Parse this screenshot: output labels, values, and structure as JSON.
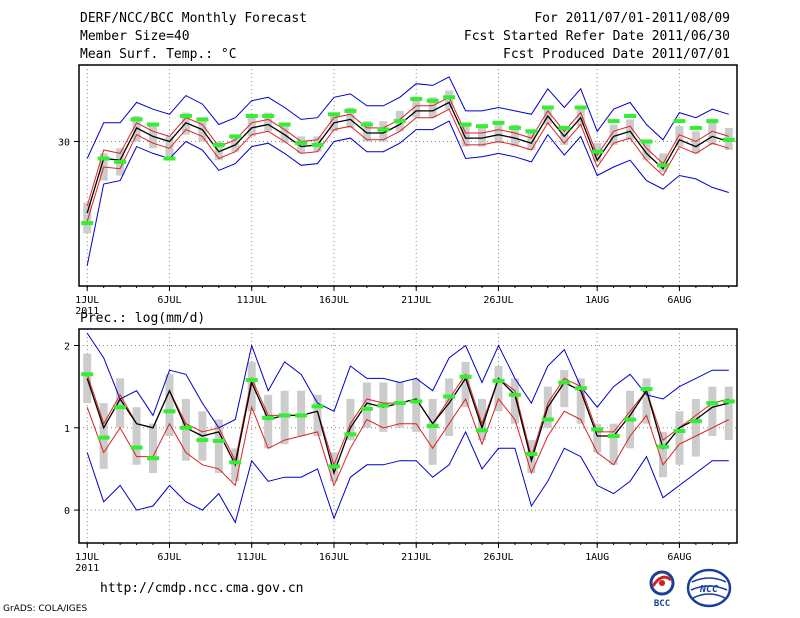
{
  "header": {
    "title": "DERF/NCC/BCC Monthly Forecast",
    "member_size": "Member Size=40",
    "variable": "Mean Surf. Temp.: °C",
    "period": "For 2011/07/01-2011/08/09",
    "fcst_started": "Fcst Started Refer Date 2011/06/30",
    "fcst_produced": "Fcst Produced Date 2011/07/01"
  },
  "colors": {
    "envelope": "#0000cc",
    "spread": "#dd2222",
    "mean": "#000000",
    "bar": "#cccccc",
    "marker": "#33ee33",
    "grid": "#888888"
  },
  "footer": {
    "url": "http://cmdp.ncc.cma.gov.cn",
    "grads": "GrADS: COLA/IGES",
    "logo_bcc": "BCC",
    "logo_ncc": "NCC"
  },
  "chart_data": [
    {
      "type": "line",
      "title": "Mean Surf. Temp.: °C",
      "x_tick_labels": [
        "1JUL",
        "6JUL",
        "11JUL",
        "16JUL",
        "21JUL",
        "26JUL",
        "1AUG",
        "6AUG"
      ],
      "x_tick_days": [
        1,
        6,
        11,
        16,
        21,
        26,
        32,
        37
      ],
      "x_year_label": "2011",
      "days": [
        1,
        2,
        3,
        4,
        5,
        6,
        7,
        8,
        9,
        10,
        11,
        12,
        13,
        14,
        15,
        16,
        17,
        18,
        19,
        20,
        21,
        22,
        23,
        24,
        25,
        26,
        27,
        28,
        29,
        30,
        31,
        32,
        33,
        34,
        35,
        36,
        37,
        38,
        39,
        40
      ],
      "y_ticks": [
        30
      ],
      "ylim": [
        21.5,
        34.5
      ],
      "grid": true,
      "series": [
        {
          "name": "max",
          "values": [
            29.0,
            31.1,
            31.1,
            32.3,
            31.9,
            31.6,
            32.7,
            32.2,
            31.0,
            31.4,
            32.4,
            32.6,
            32.0,
            31.3,
            31.4,
            32.6,
            32.8,
            32.1,
            32.1,
            32.6,
            33.4,
            33.3,
            33.8,
            31.8,
            31.8,
            32.0,
            31.8,
            31.6,
            33.1,
            32.0,
            33.1,
            30.6,
            31.9,
            32.3,
            31.0,
            30.1,
            31.7,
            31.4,
            31.9,
            31.6
          ]
        },
        {
          "name": "upper",
          "values": [
            26.2,
            29.5,
            29.3,
            31.1,
            30.6,
            30.3,
            31.4,
            31.0,
            29.7,
            30.1,
            31.1,
            31.3,
            30.7,
            30.0,
            30.1,
            31.4,
            31.6,
            30.8,
            30.8,
            31.3,
            32.1,
            32.1,
            32.6,
            30.5,
            30.5,
            30.7,
            30.5,
            30.2,
            31.8,
            30.6,
            31.7,
            29.2,
            30.6,
            30.9,
            29.6,
            28.7,
            30.4,
            30.0,
            30.6,
            30.3
          ]
        },
        {
          "name": "mean",
          "values": [
            25.8,
            29.0,
            28.9,
            30.8,
            30.3,
            30.0,
            31.1,
            30.7,
            29.4,
            29.8,
            30.8,
            31.0,
            30.4,
            29.7,
            29.8,
            31.1,
            31.3,
            30.5,
            30.5,
            31.0,
            31.8,
            31.8,
            32.3,
            30.2,
            30.2,
            30.4,
            30.2,
            29.9,
            31.5,
            30.3,
            31.4,
            28.9,
            30.3,
            30.6,
            29.3,
            28.4,
            30.1,
            29.7,
            30.3,
            30.0
          ]
        },
        {
          "name": "lower",
          "values": [
            25.3,
            28.5,
            28.4,
            30.4,
            29.9,
            29.6,
            30.7,
            30.3,
            29.0,
            29.4,
            30.4,
            30.6,
            30.0,
            29.3,
            29.4,
            30.7,
            30.9,
            30.1,
            30.1,
            30.6,
            31.4,
            31.4,
            31.9,
            29.8,
            29.8,
            30.0,
            29.8,
            29.5,
            31.1,
            29.9,
            31.0,
            28.5,
            29.9,
            30.2,
            28.9,
            28.0,
            29.7,
            29.3,
            29.9,
            29.6
          ]
        },
        {
          "name": "min",
          "values": [
            22.7,
            27.5,
            27.7,
            29.7,
            29.3,
            29.0,
            30.0,
            29.5,
            28.3,
            28.7,
            29.7,
            29.9,
            29.3,
            28.6,
            28.7,
            30.0,
            30.2,
            29.4,
            29.4,
            29.9,
            30.7,
            30.7,
            31.2,
            29.0,
            29.1,
            29.3,
            29.1,
            28.8,
            30.4,
            29.2,
            30.3,
            28.0,
            28.5,
            28.9,
            27.7,
            27.2,
            28.0,
            27.8,
            27.3,
            27.0
          ]
        },
        {
          "name": "box_low",
          "values": [
            24.6,
            27.7,
            28.0,
            30.0,
            29.6,
            29.0,
            30.4,
            30.0,
            28.9,
            29.4,
            30.3,
            30.6,
            29.9,
            29.3,
            29.4,
            30.6,
            30.8,
            30.0,
            30.0,
            30.6,
            31.4,
            31.4,
            31.9,
            29.7,
            29.7,
            29.9,
            29.7,
            29.5,
            31.0,
            29.8,
            30.9,
            28.8,
            29.8,
            30.1,
            28.9,
            28.2,
            29.7,
            29.3,
            29.8,
            29.5
          ]
        },
        {
          "name": "box_high",
          "values": [
            26.4,
            29.3,
            29.6,
            31.5,
            31.0,
            30.3,
            31.7,
            31.3,
            30.0,
            30.4,
            31.5,
            31.7,
            31.0,
            30.3,
            30.3,
            31.7,
            32.0,
            31.2,
            31.2,
            31.8,
            32.6,
            32.6,
            33.0,
            31.0,
            30.9,
            31.0,
            31.0,
            30.6,
            32.0,
            30.9,
            32.1,
            29.9,
            31.0,
            31.3,
            30.0,
            29.3,
            30.9,
            30.6,
            31.2,
            30.8
          ]
        },
        {
          "name": "observed",
          "values": [
            25.2,
            29.0,
            28.8,
            31.3,
            31.0,
            29.0,
            31.5,
            31.3,
            29.8,
            30.3,
            31.5,
            31.5,
            31.0,
            29.9,
            29.8,
            31.6,
            31.8,
            31.0,
            30.7,
            31.2,
            32.5,
            32.4,
            32.6,
            31.0,
            30.9,
            31.1,
            30.8,
            30.6,
            32.0,
            30.8,
            32.0,
            29.4,
            31.2,
            31.5,
            30.0,
            28.6,
            31.2,
            30.8,
            31.2,
            30.1
          ]
        }
      ]
    },
    {
      "type": "line",
      "title": "Prec.: log(mm/d)",
      "x_tick_labels": [
        "1JUL",
        "6JUL",
        "11JUL",
        "16JUL",
        "21JUL",
        "26JUL",
        "1AUG",
        "6AUG"
      ],
      "x_tick_days": [
        1,
        6,
        11,
        16,
        21,
        26,
        32,
        37
      ],
      "x_year_label": "2011",
      "days": [
        1,
        2,
        3,
        4,
        5,
        6,
        7,
        8,
        9,
        10,
        11,
        12,
        13,
        14,
        15,
        16,
        17,
        18,
        19,
        20,
        21,
        22,
        23,
        24,
        25,
        26,
        27,
        28,
        29,
        30,
        31,
        32,
        33,
        34,
        35,
        36,
        37,
        38,
        39,
        40
      ],
      "y_ticks": [
        0,
        1,
        2
      ],
      "ylim": [
        -0.4,
        2.2
      ],
      "grid": true,
      "series": [
        {
          "name": "max",
          "values": [
            2.15,
            1.85,
            1.35,
            1.45,
            1.15,
            1.7,
            1.65,
            1.3,
            1.0,
            1.1,
            2.0,
            1.45,
            1.8,
            1.65,
            1.3,
            1.2,
            1.75,
            1.6,
            1.6,
            1.55,
            1.6,
            1.45,
            1.85,
            2.0,
            1.55,
            2.0,
            1.6,
            1.3,
            1.75,
            1.95,
            1.5,
            1.25,
            1.5,
            1.65,
            1.4,
            1.35,
            1.5,
            1.6,
            1.7,
            1.7
          ]
        },
        {
          "name": "upper",
          "values": [
            1.65,
            1.05,
            1.4,
            1.05,
            1.0,
            1.45,
            1.05,
            0.95,
            1.0,
            0.6,
            1.6,
            1.15,
            1.15,
            1.15,
            1.2,
            0.55,
            1.05,
            1.35,
            1.3,
            1.3,
            1.35,
            1.05,
            1.35,
            1.65,
            1.05,
            1.6,
            1.45,
            0.65,
            1.3,
            1.6,
            1.5,
            0.95,
            0.95,
            1.2,
            1.45,
            0.85,
            1.0,
            1.15,
            1.3,
            1.35
          ]
        },
        {
          "name": "mean",
          "values": [
            1.6,
            1.0,
            1.35,
            1.05,
            1.0,
            1.45,
            1.0,
            0.9,
            0.95,
            0.55,
            1.55,
            1.1,
            1.15,
            1.15,
            1.2,
            0.45,
            1.0,
            1.3,
            1.25,
            1.3,
            1.35,
            1.05,
            1.3,
            1.6,
            1.0,
            1.6,
            1.4,
            0.6,
            1.25,
            1.55,
            1.45,
            0.9,
            0.9,
            1.15,
            1.45,
            0.75,
            1.0,
            1.1,
            1.25,
            1.3
          ]
        },
        {
          "name": "lower",
          "values": [
            1.25,
            0.7,
            1.0,
            0.65,
            0.65,
            1.05,
            0.7,
            0.55,
            0.5,
            0.3,
            1.25,
            0.75,
            0.85,
            0.9,
            0.95,
            0.3,
            0.75,
            1.1,
            1.0,
            1.05,
            1.05,
            0.75,
            1.05,
            1.35,
            0.8,
            1.35,
            1.1,
            0.45,
            0.9,
            1.2,
            1.1,
            0.7,
            0.55,
            0.9,
            1.15,
            0.55,
            0.8,
            0.9,
            1.0,
            1.1
          ]
        },
        {
          "name": "min",
          "values": [
            0.7,
            0.1,
            0.3,
            0.0,
            0.05,
            0.3,
            0.1,
            0.0,
            0.2,
            -0.15,
            0.6,
            0.35,
            0.4,
            0.4,
            0.5,
            -0.1,
            0.4,
            0.55,
            0.55,
            0.6,
            0.6,
            0.4,
            0.55,
            0.95,
            0.5,
            0.75,
            0.75,
            0.05,
            0.35,
            0.75,
            0.65,
            0.3,
            0.2,
            0.35,
            0.65,
            0.15,
            0.3,
            0.45,
            0.6,
            0.6
          ]
        },
        {
          "name": "box_low",
          "values": [
            1.3,
            0.5,
            1.0,
            0.55,
            0.45,
            0.9,
            0.6,
            0.6,
            0.45,
            0.35,
            1.2,
            0.75,
            0.8,
            0.9,
            0.9,
            0.35,
            0.85,
            1.0,
            0.95,
            1.0,
            0.95,
            0.55,
            0.9,
            1.25,
            0.85,
            1.2,
            1.05,
            0.45,
            1.0,
            1.25,
            1.05,
            0.7,
            0.55,
            0.75,
            1.05,
            0.4,
            0.55,
            0.65,
            0.9,
            0.85
          ]
        },
        {
          "name": "box_high",
          "values": [
            1.9,
            1.3,
            1.6,
            1.25,
            1.05,
            1.65,
            1.35,
            1.2,
            1.1,
            0.75,
            1.8,
            1.4,
            1.45,
            1.45,
            1.4,
            0.7,
            1.35,
            1.55,
            1.55,
            1.55,
            1.6,
            1.35,
            1.6,
            1.8,
            1.35,
            1.75,
            1.6,
            0.85,
            1.5,
            1.7,
            1.6,
            1.05,
            1.05,
            1.45,
            1.6,
            0.95,
            1.2,
            1.35,
            1.5,
            1.5
          ]
        },
        {
          "name": "observed",
          "values": [
            1.65,
            0.88,
            1.25,
            0.76,
            0.63,
            1.2,
            1.0,
            0.85,
            0.84,
            0.58,
            1.58,
            1.12,
            1.15,
            1.15,
            1.26,
            0.53,
            0.92,
            1.23,
            1.27,
            1.3,
            1.32,
            1.02,
            1.38,
            1.62,
            0.97,
            1.57,
            1.4,
            0.68,
            1.1,
            1.55,
            1.48,
            0.98,
            0.9,
            1.1,
            1.47,
            0.77,
            0.96,
            1.08,
            1.3,
            1.32
          ]
        }
      ]
    }
  ]
}
